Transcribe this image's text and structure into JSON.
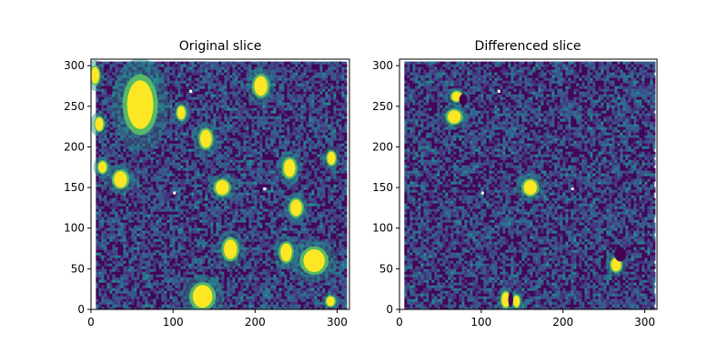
{
  "chart_data": [
    {
      "type": "heatmap",
      "title": "Original slice",
      "xlabel": "",
      "ylabel": "",
      "xlim": [
        0,
        315
      ],
      "ylim": [
        0,
        308
      ],
      "xticks": [
        0,
        100,
        200,
        300
      ],
      "yticks": [
        0,
        50,
        100,
        150,
        200,
        250,
        300
      ],
      "colormap": "viridis",
      "grid": false,
      "sources": [
        {
          "x": 5,
          "y": 288,
          "rx": 5,
          "ry": 10
        },
        {
          "x": 60,
          "y": 252,
          "rx": 16,
          "ry": 30
        },
        {
          "x": 207,
          "y": 275,
          "rx": 8,
          "ry": 12
        },
        {
          "x": 110,
          "y": 242,
          "rx": 5,
          "ry": 8
        },
        {
          "x": 10,
          "y": 228,
          "rx": 5,
          "ry": 8
        },
        {
          "x": 140,
          "y": 210,
          "rx": 7,
          "ry": 11
        },
        {
          "x": 14,
          "y": 175,
          "rx": 5,
          "ry": 7
        },
        {
          "x": 36,
          "y": 160,
          "rx": 8,
          "ry": 10
        },
        {
          "x": 242,
          "y": 174,
          "rx": 7,
          "ry": 11
        },
        {
          "x": 293,
          "y": 186,
          "rx": 5,
          "ry": 8
        },
        {
          "x": 160,
          "y": 150,
          "rx": 8,
          "ry": 9
        },
        {
          "x": 250,
          "y": 125,
          "rx": 7,
          "ry": 10
        },
        {
          "x": 170,
          "y": 74,
          "rx": 8,
          "ry": 12
        },
        {
          "x": 238,
          "y": 70,
          "rx": 7,
          "ry": 11
        },
        {
          "x": 272,
          "y": 60,
          "rx": 13,
          "ry": 14
        },
        {
          "x": 136,
          "y": 16,
          "rx": 12,
          "ry": 14
        },
        {
          "x": 292,
          "y": 10,
          "rx": 5,
          "ry": 6
        }
      ]
    },
    {
      "type": "heatmap",
      "title": "Differenced slice",
      "xlabel": "",
      "ylabel": "",
      "xlim": [
        0,
        315
      ],
      "ylim": [
        0,
        308
      ],
      "xticks": [
        0,
        100,
        200,
        300
      ],
      "yticks": [
        0,
        50,
        100,
        150,
        200,
        250,
        300
      ],
      "colormap": "viridis",
      "grid": false,
      "sources": [
        {
          "x": 70,
          "y": 262,
          "rx": 6,
          "ry": 6
        },
        {
          "x": 67,
          "y": 237,
          "rx": 8,
          "ry": 8
        },
        {
          "x": 160,
          "y": 150,
          "rx": 8,
          "ry": 9
        },
        {
          "x": 265,
          "y": 55,
          "rx": 6,
          "ry": 8
        },
        {
          "x": 130,
          "y": 12,
          "rx": 5,
          "ry": 9
        },
        {
          "x": 143,
          "y": 10,
          "rx": 4,
          "ry": 7
        }
      ],
      "dark_regions": [
        {
          "x": 78,
          "y": 258,
          "rx": 5,
          "ry": 7
        },
        {
          "x": 270,
          "y": 68,
          "rx": 7,
          "ry": 9
        },
        {
          "x": 136,
          "y": 12,
          "rx": 3,
          "ry": 9
        }
      ]
    }
  ]
}
